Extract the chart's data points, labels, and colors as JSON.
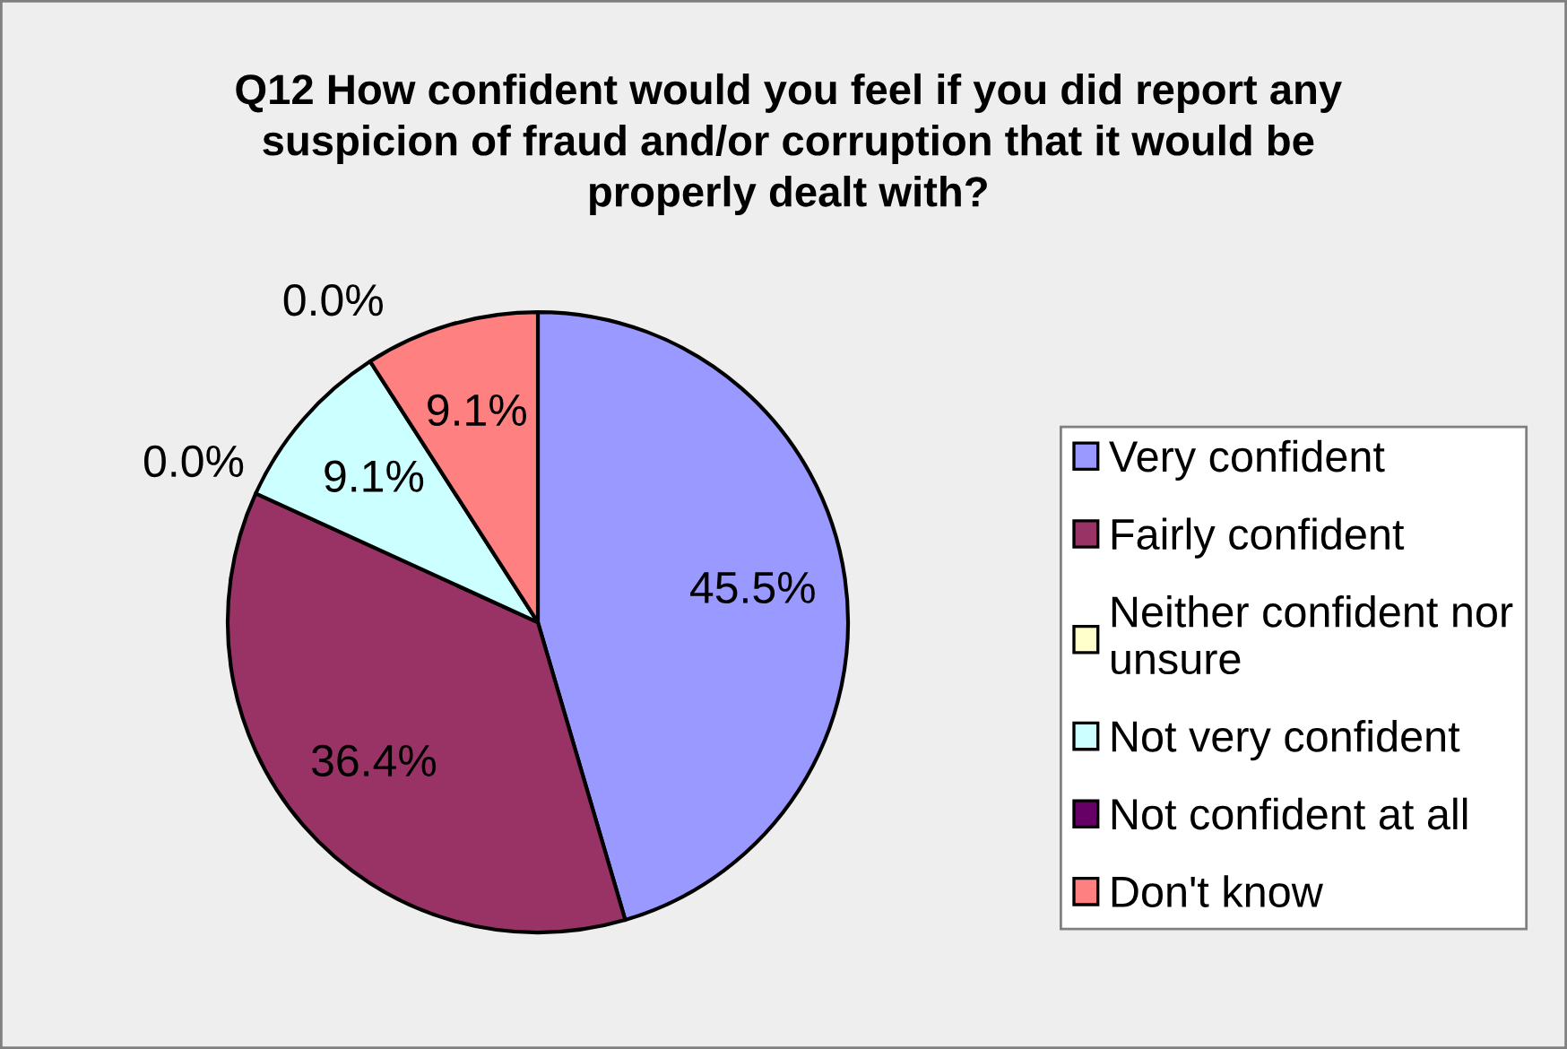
{
  "chart_data": {
    "type": "pie",
    "title": "Q12 How confident would you feel if you did report any suspicion of fraud and/or corruption that it would be properly dealt with?",
    "categories": [
      "Very confident",
      "Fairly confident",
      "Neither confident nor unsure",
      "Not very confident",
      "Not confident at all",
      "Don't know"
    ],
    "values": [
      45.5,
      36.4,
      0.0,
      9.1,
      0.0,
      9.1
    ],
    "colors": [
      "#9999ff",
      "#993366",
      "#ffffcc",
      "#ccffff",
      "#660066",
      "#ff8080"
    ],
    "value_labels": [
      "45.5%",
      "36.4%",
      "0.0%",
      "9.1%",
      "0.0%",
      "9.1%"
    ],
    "legend": "right"
  }
}
